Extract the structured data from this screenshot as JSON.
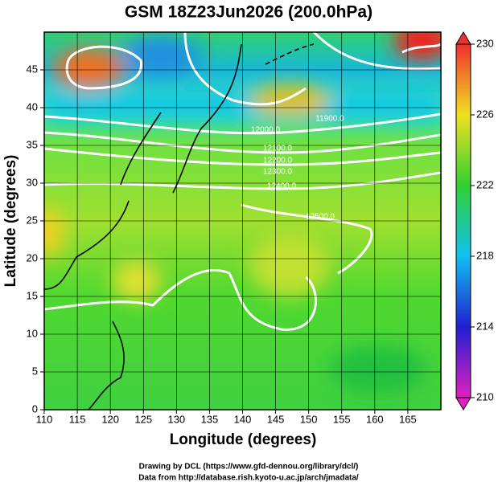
{
  "chart_data": {
    "type": "map",
    "title": "GSM 18Z23Jun2026 (200.0hPa)",
    "x_label": "Longitude (degrees)",
    "y_label": "Latitude  (degrees)",
    "xlim": [
      110,
      170
    ],
    "xticks": [
      110,
      115,
      120,
      125,
      130,
      135,
      140,
      145,
      150,
      155,
      160,
      165
    ],
    "ylim": [
      0,
      50
    ],
    "yticks": [
      0,
      5,
      10,
      15,
      20,
      25,
      30,
      35,
      40,
      45
    ],
    "grid": true,
    "colorbar": {
      "lim": [
        210,
        230
      ],
      "ticks": [
        210,
        214,
        218,
        222,
        226,
        230
      ]
    }
  },
  "contour_labels": [
    "12000.0",
    "12100.0",
    "12200.0",
    "12300.0",
    "12400.0",
    "12500.0",
    "11900.0"
  ],
  "credits": [
    "Drawing by DCL (https://www.gfd-dennou.org/library/dcl/)",
    "Data from http://database.rish.kyoto-u.ac.jp/arch/jmadata/"
  ]
}
